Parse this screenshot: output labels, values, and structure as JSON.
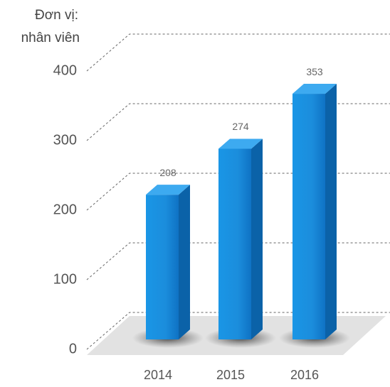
{
  "chart_data": {
    "type": "bar3d",
    "ylabel": [
      "Đơn vị:",
      "nhân viên"
    ],
    "categories": [
      "2014",
      "2015",
      "2016"
    ],
    "values": [
      208,
      274,
      353
    ],
    "color": "#1188dd",
    "ylim": [
      0,
      400
    ],
    "yticks": [
      0,
      100,
      200,
      300,
      400
    ],
    "grid": true
  }
}
